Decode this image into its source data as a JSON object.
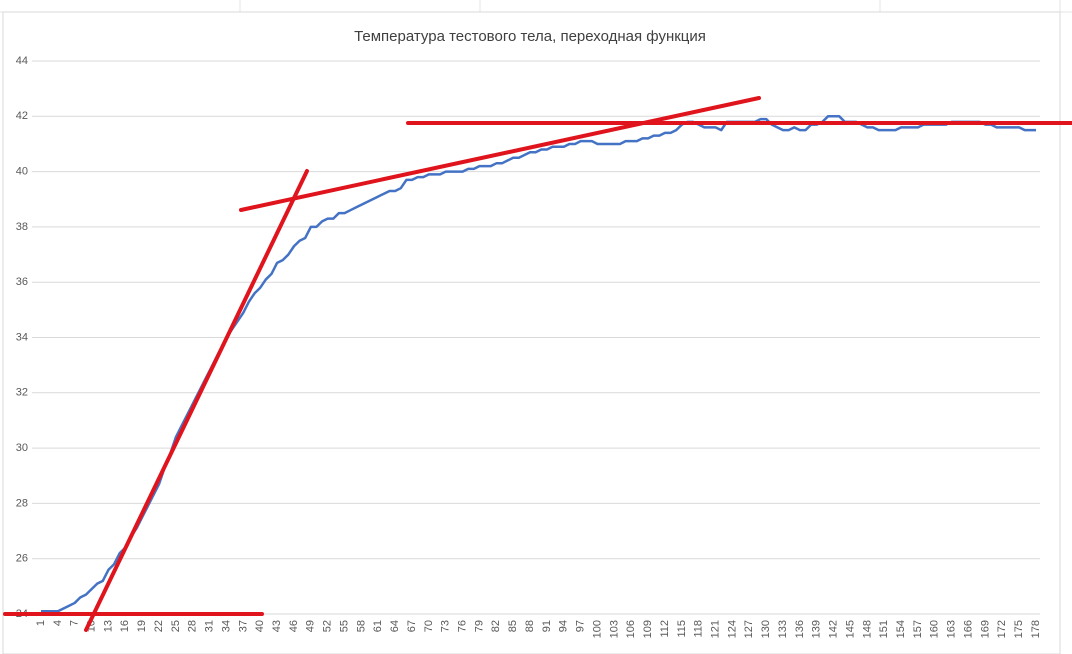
{
  "chart_data": {
    "type": "line",
    "title": "Температура тестового тела, переходная функция",
    "categories": [
      1,
      null,
      null,
      4,
      null,
      null,
      7,
      null,
      null,
      10,
      null,
      null,
      13,
      null,
      null,
      16,
      null,
      null,
      19,
      null,
      null,
      22,
      null,
      null,
      25,
      null,
      null,
      28,
      null,
      null,
      31,
      null,
      null,
      34,
      null,
      null,
      37,
      null,
      null,
      40,
      null,
      null,
      43,
      null,
      null,
      46,
      null,
      null,
      49,
      null,
      null,
      52,
      null,
      null,
      55,
      null,
      null,
      58,
      null,
      null,
      61,
      null,
      null,
      64,
      null,
      null,
      67,
      null,
      null,
      70,
      null,
      null,
      73,
      null,
      null,
      76,
      null,
      null,
      79,
      null,
      null,
      82,
      null,
      null,
      85,
      null,
      null,
      88,
      null,
      null,
      91,
      null,
      null,
      94,
      null,
      null,
      97,
      null,
      null,
      100,
      null,
      null,
      103,
      null,
      null,
      106,
      null,
      null,
      109,
      null,
      null,
      112,
      null,
      null,
      115,
      null,
      null,
      118,
      null,
      null,
      121,
      null,
      null,
      124,
      null,
      null,
      127,
      null,
      null,
      130,
      null,
      null,
      133,
      null,
      null,
      136,
      null,
      null,
      139,
      null,
      null,
      142,
      null,
      null,
      145,
      null,
      null,
      148,
      null,
      null,
      151,
      null,
      null,
      154,
      null,
      null,
      157,
      null,
      null,
      160,
      null,
      null,
      163,
      null,
      null,
      166,
      null,
      null,
      169,
      null,
      null,
      172,
      null,
      null,
      175,
      null,
      null,
      178
    ],
    "series": [
      {
        "color": "#4472c4",
        "values": [
          24.1,
          24.1,
          24.1,
          24.1,
          24.2,
          24.3,
          24.4,
          24.6,
          24.7,
          24.9,
          25.1,
          25.2,
          25.6,
          25.8,
          26.2,
          26.4,
          26.8,
          27.1,
          27.5,
          27.9,
          28.3,
          28.7,
          29.3,
          29.8,
          30.4,
          30.8,
          31.2,
          31.6,
          32.0,
          32.4,
          32.8,
          33.2,
          33.6,
          34.0,
          34.3,
          34.6,
          34.9,
          35.3,
          35.6,
          35.8,
          36.1,
          36.3,
          36.7,
          36.8,
          37.0,
          37.3,
          37.5,
          37.6,
          38.0,
          38.0,
          38.2,
          38.3,
          38.3,
          38.5,
          38.5,
          38.6,
          38.7,
          38.8,
          38.9,
          39.0,
          39.1,
          39.2,
          39.3,
          39.3,
          39.4,
          39.7,
          39.7,
          39.8,
          39.8,
          39.9,
          39.9,
          39.9,
          40.0,
          40.0,
          40.0,
          40.0,
          40.1,
          40.1,
          40.2,
          40.2,
          40.2,
          40.3,
          40.3,
          40.4,
          40.5,
          40.5,
          40.6,
          40.7,
          40.7,
          40.8,
          40.8,
          40.9,
          40.9,
          40.9,
          41.0,
          41.0,
          41.1,
          41.1,
          41.1,
          41.0,
          41.0,
          41.0,
          41.0,
          41.0,
          41.1,
          41.1,
          41.1,
          41.2,
          41.2,
          41.3,
          41.3,
          41.4,
          41.4,
          41.5,
          41.7,
          41.8,
          41.8,
          41.7,
          41.6,
          41.6,
          41.6,
          41.5,
          41.8,
          41.8,
          41.8,
          41.8,
          41.8,
          41.8,
          41.9,
          41.9,
          41.7,
          41.6,
          41.5,
          41.5,
          41.6,
          41.5,
          41.5,
          41.7,
          41.7,
          41.8,
          42.0,
          42.0,
          42.0,
          41.8,
          41.8,
          41.8,
          41.7,
          41.6,
          41.6,
          41.5,
          41.5,
          41.5,
          41.5,
          41.6,
          41.6,
          41.6,
          41.6,
          41.7,
          41.7,
          41.7,
          41.7,
          41.7,
          41.8,
          41.8,
          41.8,
          41.8,
          41.8,
          41.8,
          41.7,
          41.7,
          41.6,
          41.6,
          41.6,
          41.6,
          41.6,
          41.5,
          41.5,
          41.5
        ]
      }
    ],
    "ylim": [
      24,
      44
    ],
    "yticks": [
      24,
      26,
      28,
      30,
      32,
      34,
      36,
      38,
      40,
      42,
      44
    ],
    "grid": true
  }
}
